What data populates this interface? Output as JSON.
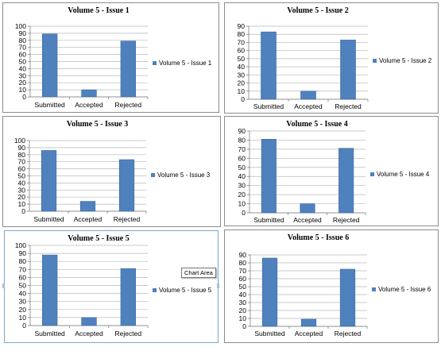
{
  "colors": {
    "bar": "#4f81bd",
    "bar_stroke": "#3b6ba5",
    "grid": "#b8b8b8",
    "selected_border": "#7fa7c9"
  },
  "tooltip": {
    "text": "Chart Area"
  },
  "chart_data": [
    {
      "type": "bar",
      "title": "Volume 5 - Issue 1",
      "categories": [
        "Submitted",
        "Accepted",
        "Rejected"
      ],
      "series": [
        {
          "name": "Volume 5 - Issue 1",
          "values": [
            89,
            10,
            79
          ]
        }
      ],
      "ylim": [
        0,
        100
      ],
      "ystep": 10,
      "grid": true,
      "legend": "right"
    },
    {
      "type": "bar",
      "title": "Volume 5 - Issue 2",
      "categories": [
        "Submitted",
        "Accepted",
        "Rejected"
      ],
      "series": [
        {
          "name": "Volume 5 - Issue 2",
          "values": [
            83,
            10,
            73
          ]
        }
      ],
      "ylim": [
        0,
        90
      ],
      "ystep": 10,
      "grid": true,
      "legend": "right"
    },
    {
      "type": "bar",
      "title": "Volume 5 - Issue 3",
      "categories": [
        "Submitted",
        "Accepted",
        "Rejected"
      ],
      "series": [
        {
          "name": "Volume 5 - Issue 3",
          "values": [
            86,
            14,
            73
          ]
        }
      ],
      "ylim": [
        0,
        100
      ],
      "ystep": 10,
      "grid": true,
      "legend": "right"
    },
    {
      "type": "bar",
      "title": "Volume 5 - Issue 4",
      "categories": [
        "Submitted",
        "Accepted",
        "Rejected"
      ],
      "series": [
        {
          "name": "Volume 5 - Issue 4",
          "values": [
            81,
            10,
            71
          ]
        }
      ],
      "ylim": [
        0,
        90
      ],
      "ystep": 10,
      "grid": true,
      "legend": "right"
    },
    {
      "type": "bar",
      "title": "Volume 5 - Issue 5",
      "categories": [
        "Submitted",
        "Accepted",
        "Rejected"
      ],
      "series": [
        {
          "name": "Volume 5 - Issue 5",
          "values": [
            88,
            10,
            71
          ]
        }
      ],
      "ylim": [
        0,
        100
      ],
      "ystep": 10,
      "grid": true,
      "legend": "right"
    },
    {
      "type": "bar",
      "title": "Volume 5 - Issue 6",
      "categories": [
        "Submitted",
        "Accepted",
        "Rejected"
      ],
      "series": [
        {
          "name": "Volume 5 - Issue 6",
          "values": [
            86,
            9,
            72
          ]
        }
      ],
      "ylim": [
        0,
        90
      ],
      "ystep": 10,
      "grid": true,
      "legend": "right"
    }
  ]
}
